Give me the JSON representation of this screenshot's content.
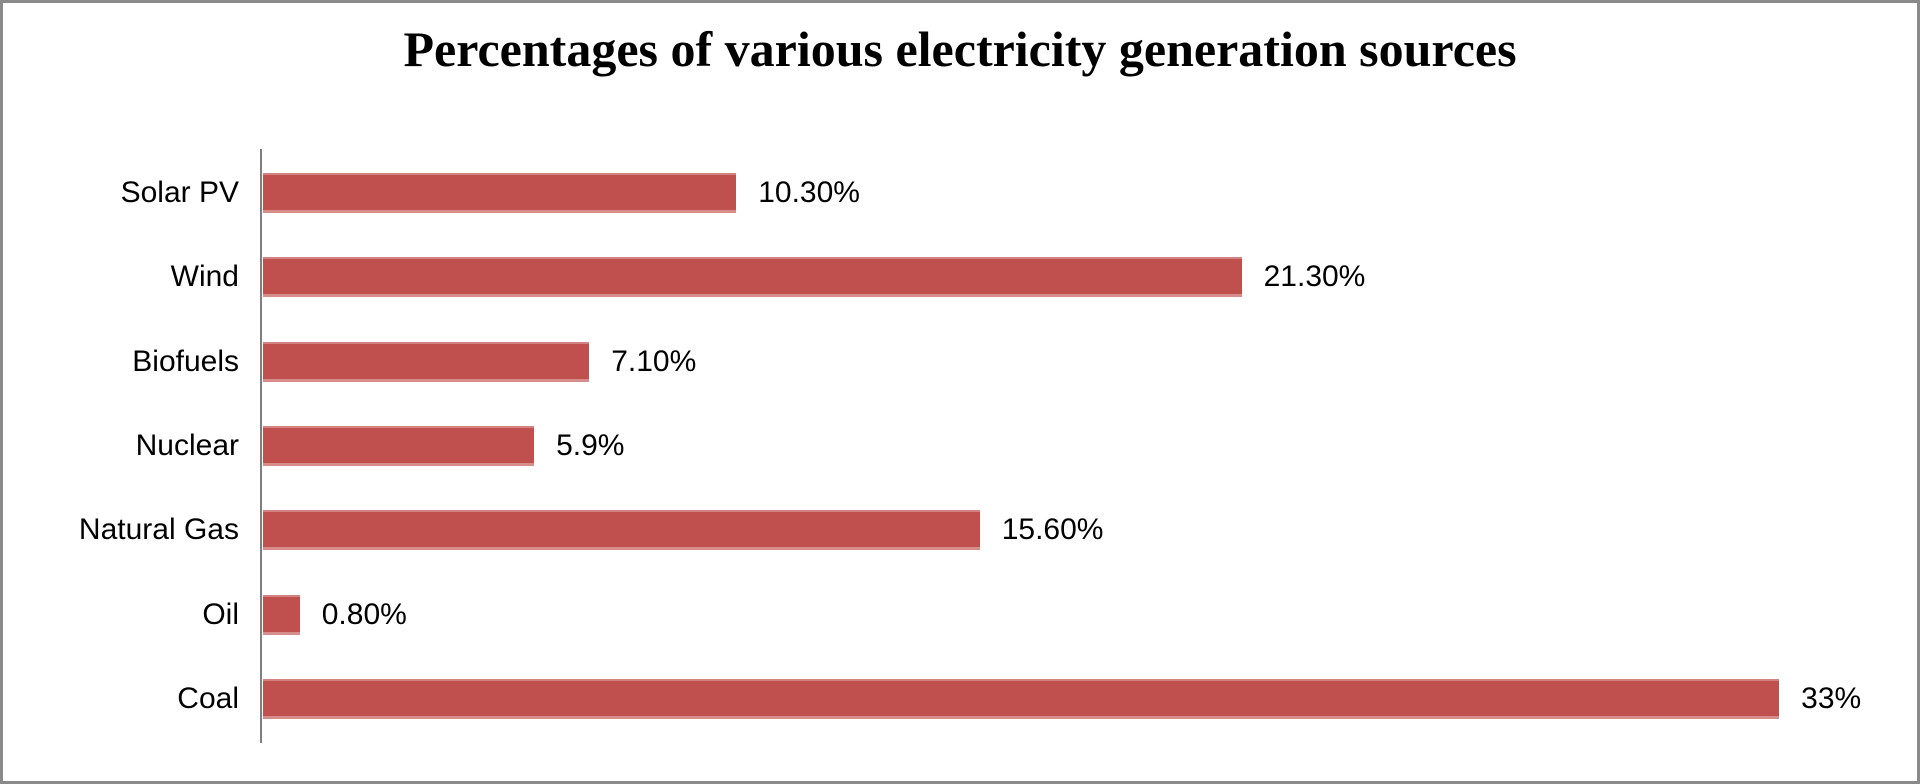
{
  "title": "Percentages of various electricity generation sources",
  "chart_data": {
    "type": "bar",
    "orientation": "horizontal",
    "title": "Percentages of various electricity generation sources",
    "categories": [
      "Solar PV",
      "Wind",
      "Biofuels",
      "Nuclear",
      "Natural Gas",
      "Oil",
      "Coal"
    ],
    "values": [
      10.3,
      21.3,
      7.1,
      5.9,
      15.6,
      0.8,
      33
    ],
    "value_labels": [
      "10.30%",
      "21.30%",
      "7.10%",
      "5.9%",
      "15.60%",
      "0.80%",
      "33%"
    ],
    "xlabel": "",
    "ylabel": "",
    "xlim": [
      0,
      36
    ],
    "grid": false,
    "legend": false,
    "data_labels": "outside-end",
    "bar_color": "#C0504D",
    "axis_color": "#7F7F7F",
    "frame_border_color": "#8A8A8A",
    "background_color": "#FFFFFF",
    "text_color": "#000000"
  }
}
